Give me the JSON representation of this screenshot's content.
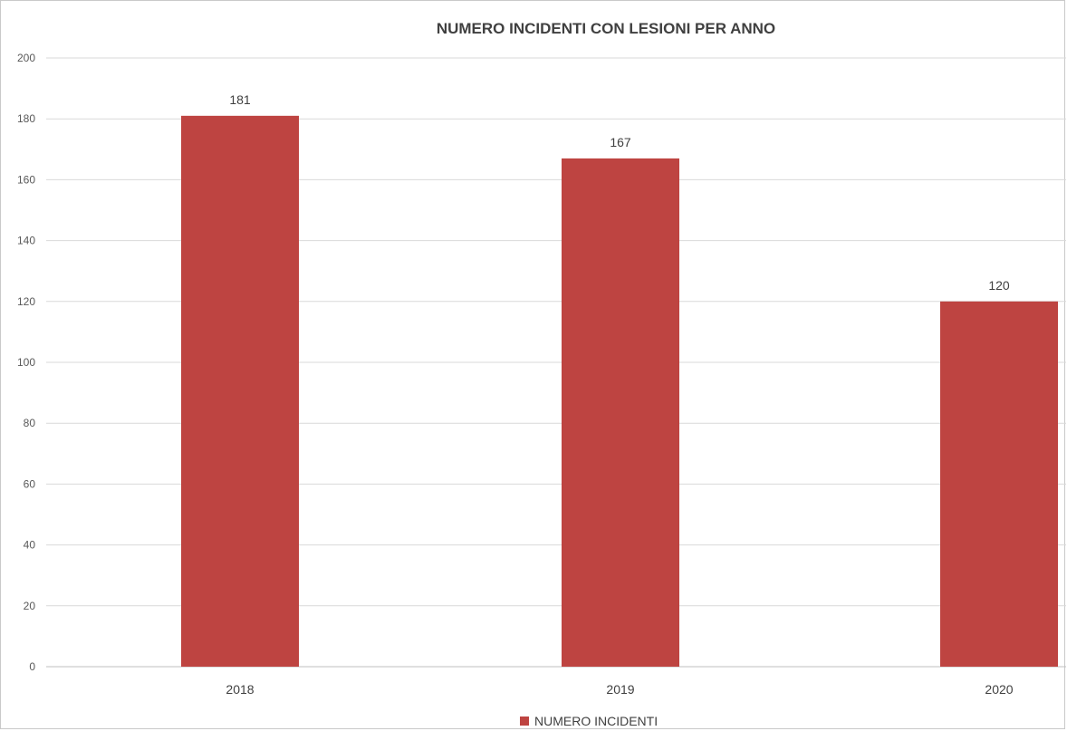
{
  "chart_data": {
    "type": "bar",
    "title": "NUMERO INCIDENTI CON LESIONI PER ANNO",
    "categories": [
      "2018",
      "2019",
      "2020"
    ],
    "series": [
      {
        "name": "NUMERO INCIDENTI",
        "values": [
          181,
          167,
          120
        ],
        "color": "#be4441"
      }
    ],
    "data_labels": [
      "181",
      "167",
      "120"
    ],
    "y_ticks": [
      "0",
      "20",
      "40",
      "60",
      "80",
      "100",
      "120",
      "140",
      "160",
      "180",
      "200"
    ],
    "ylim": [
      0,
      200
    ],
    "grid": true,
    "legend_position": "bottom"
  }
}
